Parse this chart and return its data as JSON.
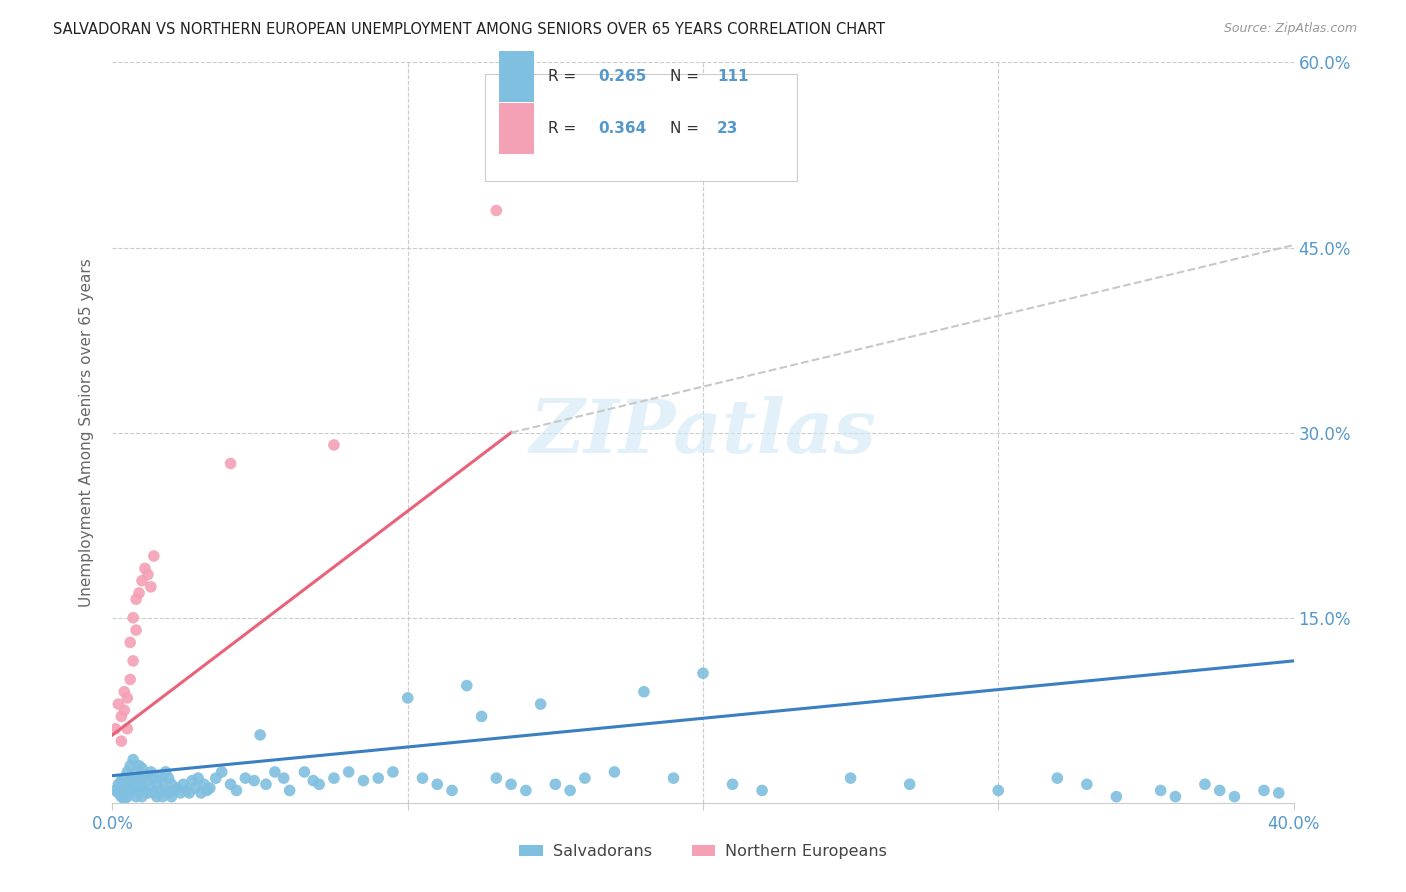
{
  "title": "SALVADORAN VS NORTHERN EUROPEAN UNEMPLOYMENT AMONG SENIORS OVER 65 YEARS CORRELATION CHART",
  "source": "Source: ZipAtlas.com",
  "ylabel": "Unemployment Among Seniors over 65 years",
  "xlim": [
    0,
    0.4
  ],
  "ylim": [
    0,
    0.6
  ],
  "legend_r1": "R = 0.265",
  "legend_n1": "N = 111",
  "legend_r2": "R = 0.364",
  "legend_n2": "N = 23",
  "legend_label1": "Salvadorans",
  "legend_label2": "Northern Europeans",
  "blue_scatter_color": "#7fbfdf",
  "pink_scatter_color": "#f4a0b5",
  "blue_line_color": "#3a7fc1",
  "pink_line_color": "#e8627a",
  "dash_line_color": "#c8c8c8",
  "axis_tick_color": "#5599cc",
  "grid_color": "#cccccc",
  "blue_scatter_x": [
    0.001,
    0.002,
    0.002,
    0.003,
    0.003,
    0.003,
    0.004,
    0.004,
    0.004,
    0.005,
    0.005,
    0.005,
    0.006,
    0.006,
    0.006,
    0.007,
    0.007,
    0.007,
    0.008,
    0.008,
    0.008,
    0.009,
    0.009,
    0.009,
    0.01,
    0.01,
    0.01,
    0.011,
    0.011,
    0.012,
    0.012,
    0.013,
    0.013,
    0.014,
    0.014,
    0.015,
    0.015,
    0.016,
    0.016,
    0.017,
    0.017,
    0.018,
    0.018,
    0.019,
    0.019,
    0.02,
    0.02,
    0.021,
    0.022,
    0.023,
    0.024,
    0.025,
    0.026,
    0.027,
    0.028,
    0.029,
    0.03,
    0.031,
    0.032,
    0.033,
    0.035,
    0.037,
    0.04,
    0.042,
    0.045,
    0.048,
    0.05,
    0.052,
    0.055,
    0.058,
    0.06,
    0.065,
    0.068,
    0.07,
    0.075,
    0.08,
    0.085,
    0.09,
    0.095,
    0.1,
    0.105,
    0.11,
    0.115,
    0.12,
    0.125,
    0.13,
    0.135,
    0.14,
    0.145,
    0.15,
    0.155,
    0.16,
    0.17,
    0.18,
    0.19,
    0.2,
    0.21,
    0.22,
    0.25,
    0.27,
    0.3,
    0.32,
    0.33,
    0.34,
    0.355,
    0.36,
    0.37,
    0.375,
    0.38,
    0.39,
    0.395
  ],
  "blue_scatter_y": [
    0.01,
    0.008,
    0.015,
    0.005,
    0.012,
    0.018,
    0.003,
    0.01,
    0.02,
    0.005,
    0.015,
    0.025,
    0.008,
    0.018,
    0.03,
    0.01,
    0.02,
    0.035,
    0.005,
    0.015,
    0.025,
    0.01,
    0.02,
    0.03,
    0.005,
    0.015,
    0.028,
    0.01,
    0.022,
    0.008,
    0.018,
    0.012,
    0.025,
    0.008,
    0.02,
    0.005,
    0.015,
    0.01,
    0.022,
    0.005,
    0.018,
    0.01,
    0.025,
    0.008,
    0.02,
    0.005,
    0.015,
    0.01,
    0.012,
    0.008,
    0.015,
    0.01,
    0.008,
    0.018,
    0.012,
    0.02,
    0.008,
    0.015,
    0.01,
    0.012,
    0.02,
    0.025,
    0.015,
    0.01,
    0.02,
    0.018,
    0.055,
    0.015,
    0.025,
    0.02,
    0.01,
    0.025,
    0.018,
    0.015,
    0.02,
    0.025,
    0.018,
    0.02,
    0.025,
    0.085,
    0.02,
    0.015,
    0.01,
    0.095,
    0.07,
    0.02,
    0.015,
    0.01,
    0.08,
    0.015,
    0.01,
    0.02,
    0.025,
    0.09,
    0.02,
    0.105,
    0.015,
    0.01,
    0.02,
    0.015,
    0.01,
    0.02,
    0.015,
    0.005,
    0.01,
    0.005,
    0.015,
    0.01,
    0.005,
    0.01,
    0.008
  ],
  "pink_scatter_x": [
    0.001,
    0.002,
    0.003,
    0.003,
    0.004,
    0.004,
    0.005,
    0.005,
    0.006,
    0.006,
    0.007,
    0.007,
    0.008,
    0.008,
    0.009,
    0.01,
    0.011,
    0.012,
    0.013,
    0.014,
    0.04,
    0.075,
    0.13
  ],
  "pink_scatter_y": [
    0.06,
    0.08,
    0.05,
    0.07,
    0.075,
    0.09,
    0.06,
    0.085,
    0.1,
    0.13,
    0.115,
    0.15,
    0.14,
    0.165,
    0.17,
    0.18,
    0.19,
    0.185,
    0.175,
    0.2,
    0.275,
    0.29,
    0.48
  ],
  "blue_line": {
    "x0": 0.0,
    "x1": 0.4,
    "y0": 0.022,
    "y1": 0.115
  },
  "pink_line_solid": {
    "x0": 0.0,
    "x1": 0.135,
    "y0": 0.055,
    "y1": 0.3
  },
  "pink_line_dash": {
    "x0": 0.135,
    "x1": 0.4,
    "y0": 0.3,
    "y1": 0.452
  }
}
